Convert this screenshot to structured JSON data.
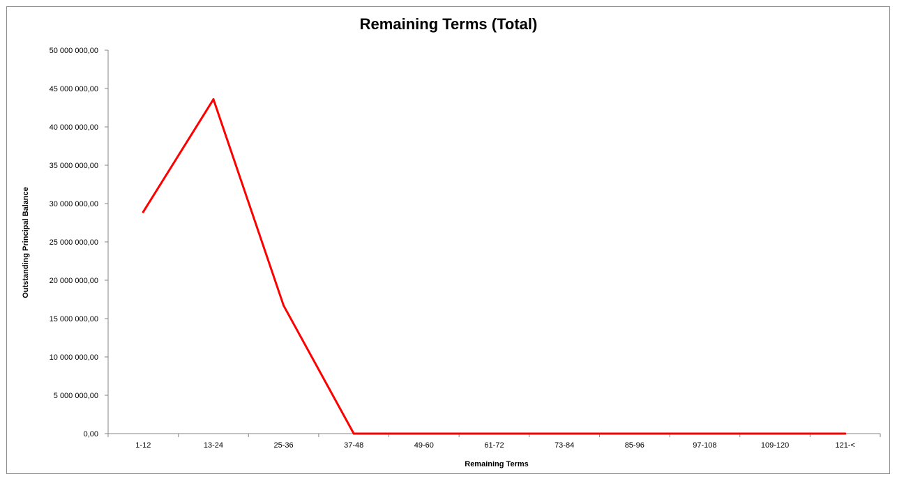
{
  "chart_data": {
    "type": "line",
    "title": "Remaining Terms (Total)",
    "xlabel": "Remaining Terms",
    "ylabel": "Outstanding Principal Balance",
    "categories": [
      "1-12",
      "13-24",
      "25-36",
      "37-48",
      "49-60",
      "61-72",
      "73-84",
      "85-96",
      "97-108",
      "109-120",
      "121-<"
    ],
    "series": [
      {
        "values": [
          28900000,
          43600000,
          16700000,
          0,
          0,
          0,
          0,
          0,
          0,
          0,
          0
        ],
        "color": "#ff0000"
      }
    ],
    "ylim": [
      0,
      50000000
    ],
    "yticks": [
      0,
      5000000,
      10000000,
      15000000,
      20000000,
      25000000,
      30000000,
      35000000,
      40000000,
      45000000,
      50000000
    ],
    "ytick_labels": [
      "0,00",
      "5 000 000,00",
      "10 000 000,00",
      "15 000 000,00",
      "20 000 000,00",
      "25 000 000,00",
      "30 000 000,00",
      "35 000 000,00",
      "40 000 000,00",
      "45 000 000,00",
      "50 000 000,00"
    ],
    "grid": false,
    "legend": "none"
  }
}
